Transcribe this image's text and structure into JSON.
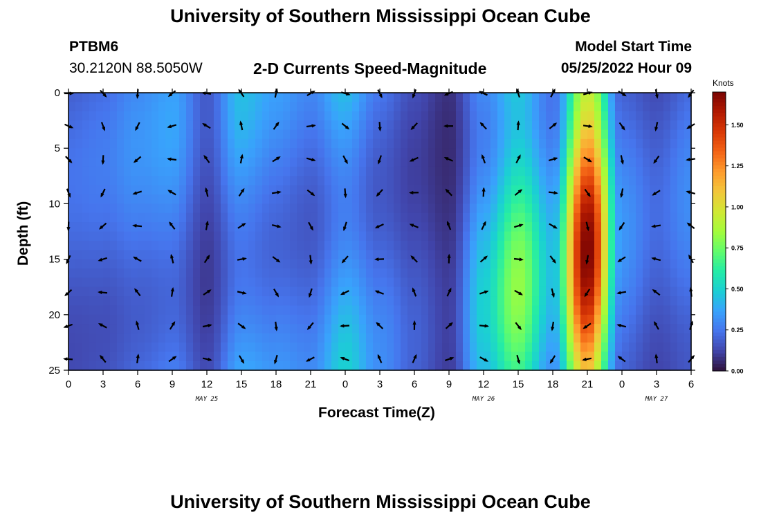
{
  "header": {
    "title": "University of Southern Mississippi Ocean Cube",
    "station": "PTBM6",
    "coords": "30.2120N  88.5050W",
    "chart_title": "2-D Currents Speed-Magnitude",
    "model_label": "Model Start Time",
    "model_time": "05/25/2022 Hour 09",
    "footer_title": "University of Southern Mississippi Ocean Cube"
  },
  "chart_data": {
    "type": "heatmap",
    "title": "2-D Currents Speed-Magnitude",
    "xlabel": "Forecast Time(Z)",
    "ylabel": "Depth (ft)",
    "x_tick_labels": [
      "0",
      "3",
      "6",
      "9",
      "12",
      "15",
      "18",
      "21",
      "0",
      "3",
      "6",
      "9",
      "12",
      "15",
      "18",
      "21",
      "0",
      "3",
      "6"
    ],
    "x_date_labels": [
      {
        "label": "MAY 25",
        "at_tick": 4
      },
      {
        "label": "MAY 26",
        "at_tick": 12
      },
      {
        "label": "MAY 27",
        "at_tick": 17
      }
    ],
    "y_ticks": [
      0,
      5,
      10,
      15,
      20,
      25
    ],
    "ylim": [
      0,
      25
    ],
    "colorbar": {
      "label": "Knots",
      "ticks": [
        "0.00",
        "0.25",
        "0.50",
        "0.75",
        "1.00",
        "1.25",
        "1.50"
      ],
      "range": [
        0,
        1.7
      ],
      "colors": [
        "#30123b",
        "#4145ab",
        "#4675ed",
        "#39a2fc",
        "#1bcfd4",
        "#24eca6",
        "#61fc6c",
        "#a4fc3b",
        "#d1e834",
        "#f3c63a",
        "#fe9b2d",
        "#f36315",
        "#d93806",
        "#b11901",
        "#7a0402"
      ]
    },
    "speed_profile_by_time": [
      0.22,
      0.24,
      0.3,
      0.34,
      0.16,
      0.4,
      0.33,
      0.28,
      0.45,
      0.28,
      0.18,
      0.1,
      0.45,
      0.75,
      0.4,
      1.55,
      0.3,
      0.2,
      0.28
    ],
    "arrow_columns_times": [
      "0",
      "3",
      "6",
      "9",
      "12",
      "15",
      "18",
      "21",
      "0",
      "3",
      "6",
      "9",
      "12",
      "15",
      "18",
      "21",
      "0",
      "3",
      "6"
    ],
    "arrow_rows_depths": [
      0,
      3,
      6,
      9,
      12,
      15,
      18,
      21,
      24
    ]
  }
}
